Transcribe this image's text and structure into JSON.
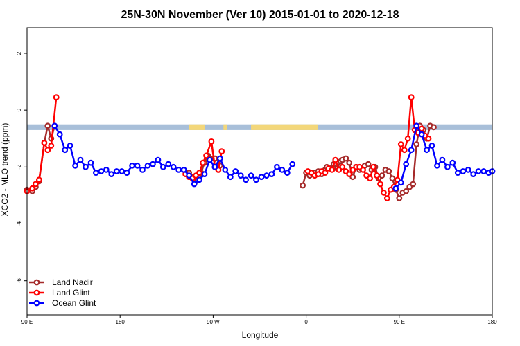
{
  "chart_data": {
    "type": "line",
    "title": "25N-30N November (Ver 10)   2015-01-01 to 2020-12-18",
    "xlabel": "Longitude",
    "ylabel": "XCO2 - MLO trend (ppm)",
    "xlim": [
      -90,
      180
    ],
    "ylim": [
      -7.2,
      2.9
    ],
    "x_ticks": [
      {
        "value": -90,
        "label": "90 E"
      },
      {
        "value": -36,
        "label": "180"
      },
      {
        "value": 18,
        "label": "90 W"
      },
      {
        "value": 72,
        "label": "0"
      },
      {
        "value": 126,
        "label": "90 E"
      },
      {
        "value": 180,
        "label": "180"
      }
    ],
    "y_ticks": [
      -6,
      -4,
      -2,
      0,
      2
    ],
    "land_ocean_band": {
      "y_top": -0.5,
      "y_bottom": -0.7,
      "ocean_color": "#a8bfd9",
      "land_color": "#f3d77a",
      "land_segments": [
        [
          4,
          13
        ],
        [
          24,
          26
        ],
        [
          40,
          79
        ]
      ]
    },
    "legend": {
      "position": "bottom-left"
    },
    "series": [
      {
        "name": "Land Nadir",
        "color": "#a52a2a",
        "x": [
          -90,
          -87,
          -85,
          -83,
          -80,
          -78,
          -76,
          -74,
          4,
          6,
          8,
          9,
          10,
          11,
          13,
          15,
          19,
          20,
          21,
          22,
          70,
          72,
          74,
          77,
          79,
          81,
          83,
          84,
          86,
          88,
          90,
          92,
          93,
          95,
          97,
          99,
          101,
          103,
          104,
          106,
          108,
          110,
          112,
          114,
          116,
          118,
          120,
          122,
          124,
          126,
          128,
          130,
          132,
          134,
          136,
          138,
          140,
          142,
          144,
          146
        ],
        "y": [
          -2.8,
          -2.85,
          -2.7,
          -2.5,
          -1.15,
          -0.55,
          -1.0,
          -0.55,
          -2.2,
          -2.35,
          -2.5,
          -2.45,
          -2.3,
          -2.2,
          -1.85,
          -1.6,
          -1.7,
          -1.85,
          -2.1,
          -1.95,
          -2.65,
          -2.2,
          -2.3,
          -2.2,
          -2.15,
          -2.25,
          -2.1,
          -2.0,
          -2.05,
          -1.9,
          -2.05,
          -1.8,
          -1.75,
          -1.7,
          -1.85,
          -2.35,
          -2.0,
          -2.1,
          -2.05,
          -1.95,
          -1.9,
          -2.1,
          -2.0,
          -2.4,
          -2.3,
          -2.1,
          -2.15,
          -2.4,
          -2.8,
          -3.1,
          -2.9,
          -2.85,
          -2.7,
          -2.6,
          -1.2,
          -0.55,
          -0.7,
          -1.0,
          -0.55,
          -0.6
        ],
        "visible_range": [
          [
            -90,
            -74
          ],
          [
            4,
            22
          ],
          [
            70,
            146
          ]
        ]
      },
      {
        "name": "Land Glint",
        "color": "#ff0000",
        "x": [
          -90,
          -87,
          -85,
          -83,
          -80,
          -78,
          -76,
          -73,
          2,
          4,
          6,
          8,
          10,
          12,
          14,
          17,
          19,
          21,
          23,
          73,
          75,
          77,
          79,
          81,
          83,
          85,
          87,
          89,
          91,
          93,
          95,
          97,
          99,
          101,
          103,
          105,
          107,
          109,
          111,
          113,
          115,
          117,
          119,
          121,
          123,
          125,
          127,
          129,
          131,
          133,
          135,
          137,
          139,
          141,
          143
        ],
        "y": [
          -2.85,
          -2.75,
          -2.6,
          -2.45,
          -1.15,
          -1.4,
          -1.25,
          0.45,
          -2.25,
          -2.35,
          -2.4,
          -2.3,
          -2.2,
          -1.85,
          -1.6,
          -1.1,
          -2.0,
          -2.1,
          -1.45,
          -2.15,
          -2.2,
          -2.3,
          -2.25,
          -2.15,
          -2.2,
          -2.05,
          -2.1,
          -1.75,
          -2.1,
          -2.0,
          -2.15,
          -2.25,
          -2.1,
          -2.0,
          -2.0,
          -2.1,
          -2.3,
          -2.4,
          -2.0,
          -2.3,
          -2.6,
          -2.9,
          -3.1,
          -2.8,
          -2.7,
          -2.45,
          -1.2,
          -1.4,
          -1.0,
          0.45,
          -0.7,
          -0.8,
          -0.65,
          -0.9,
          -1.0
        ],
        "visible_range": [
          [
            -90,
            -73
          ],
          [
            2,
            23
          ],
          [
            73,
            143
          ]
        ]
      },
      {
        "name": "Ocean Glint",
        "color": "#0000ff",
        "x": [
          -74,
          -71,
          -68,
          -65,
          -62,
          -59,
          -56,
          -53,
          -50,
          -47,
          -44,
          -41,
          -38,
          -35,
          -32,
          -29,
          -26,
          -23,
          -20,
          -17,
          -14,
          -11,
          -8,
          -5,
          -2,
          1,
          4,
          7,
          10,
          13,
          16,
          19,
          22,
          25,
          28,
          31,
          34,
          37,
          40,
          43,
          46,
          49,
          52,
          55,
          58,
          61,
          64,
          67,
          70,
          73,
          76,
          79,
          82,
          85,
          88,
          91,
          94,
          97,
          100,
          103,
          106,
          109,
          112,
          115,
          118,
          121,
          124,
          127,
          130,
          133,
          136,
          139,
          142,
          145,
          148,
          151,
          154,
          157,
          160,
          163,
          166,
          169,
          172,
          175,
          178,
          180
        ],
        "y": [
          -0.55,
          -0.85,
          -1.4,
          -1.25,
          -1.95,
          -1.75,
          -2.0,
          -1.85,
          -2.2,
          -2.15,
          -2.1,
          -2.25,
          -2.15,
          -2.15,
          -2.2,
          -1.95,
          -1.95,
          -2.1,
          -1.95,
          -1.9,
          -1.75,
          -2.0,
          -1.9,
          -2.0,
          -2.1,
          -2.1,
          -2.3,
          -2.6,
          -2.45,
          -2.25,
          -1.75,
          -2.0,
          -1.7,
          -2.1,
          -2.35,
          -2.15,
          -2.3,
          -2.45,
          -2.3,
          -2.45,
          -2.35,
          -2.3,
          -2.25,
          -2.0,
          -2.1,
          -2.2,
          -1.9,
          -2.2,
          -2.1,
          -2.0,
          -2.05,
          -2.1,
          -1.9,
          -1.95,
          -1.7,
          -1.8,
          -2.0,
          -1.75,
          -1.8,
          -2.35,
          -2.2,
          -2.4,
          -2.3,
          -2.7,
          -2.9,
          -3.0,
          -2.75,
          -2.55,
          -1.9,
          -1.4,
          -0.55,
          -0.85,
          -1.4,
          -1.25,
          -1.95,
          -1.75,
          -2.0,
          -1.85,
          -2.2,
          -2.15,
          -2.1,
          -2.25,
          -2.15,
          -2.15,
          -2.2,
          -2.15
        ],
        "visible_range": [
          [
            -74,
            -2
          ],
          [
            1,
            37
          ],
          [
            40,
            66
          ],
          [
            122,
            180
          ]
        ]
      }
    ]
  }
}
